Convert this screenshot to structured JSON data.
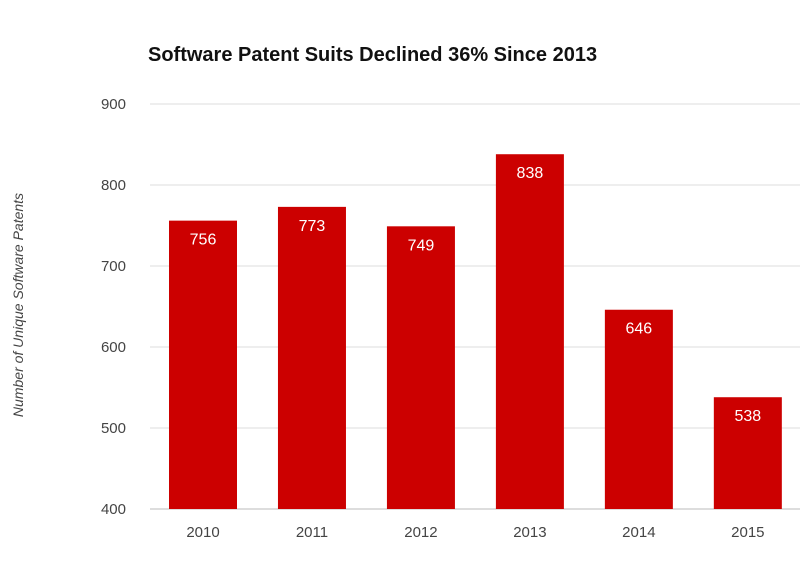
{
  "chart_data": {
    "type": "bar",
    "title": "Software Patent Suits Declined 36% Since 2013",
    "xlabel": "",
    "ylabel": "Number of Unique Software Patents",
    "categories": [
      "2010",
      "2011",
      "2012",
      "2013",
      "2014",
      "2015"
    ],
    "values": [
      756,
      773,
      749,
      838,
      646,
      538
    ],
    "ylim": [
      400,
      900
    ],
    "yticks": [
      400,
      500,
      600,
      700,
      800,
      900
    ],
    "grid": true,
    "bar_color": "#cc0000",
    "data_labels": true
  }
}
